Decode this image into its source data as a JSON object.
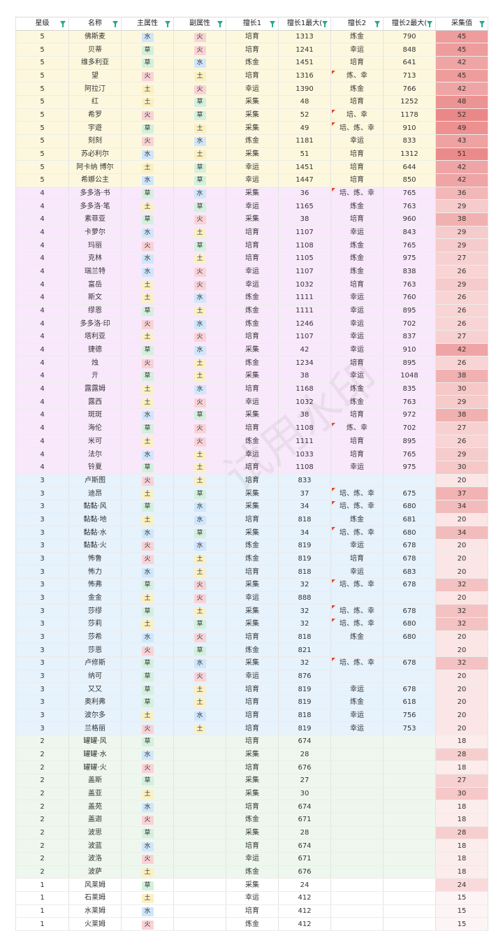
{
  "watermark": "试用水印",
  "headers": [
    "星级",
    "名称",
    "主属性",
    "副属性",
    "擅长1",
    "擅长1最大(",
    "擅长2",
    "擅长2最大(",
    "采集值"
  ],
  "colors": {
    "heat_base": "#e87a7a"
  },
  "rows": [
    [
      "5",
      "佛斯麦",
      "水",
      "火",
      "培育",
      "1313",
      "炼金",
      "790",
      "45"
    ],
    [
      "5",
      "贝蒂",
      "草",
      "火",
      "培育",
      "1241",
      "幸运",
      "848",
      "45"
    ],
    [
      "5",
      "维多利亚",
      "草",
      "水",
      "炼金",
      "1451",
      "培育",
      "641",
      "42"
    ],
    [
      "5",
      "望",
      "火",
      "土",
      "培育",
      "1316",
      "炼、幸",
      "713",
      "45"
    ],
    [
      "5",
      "阿拉汀",
      "土",
      "火",
      "幸运",
      "1390",
      "炼金",
      "766",
      "42"
    ],
    [
      "5",
      "红",
      "土",
      "草",
      "采集",
      "48",
      "培育",
      "1252",
      "48"
    ],
    [
      "5",
      "希罗",
      "火",
      "草",
      "采集",
      "52",
      "培、幸",
      "1178",
      "52"
    ],
    [
      "5",
      "宇遊",
      "草",
      "土",
      "采集",
      "49",
      "培、炼、幸",
      "910",
      "49"
    ],
    [
      "5",
      "刻刻",
      "火",
      "水",
      "炼金",
      "1181",
      "幸运",
      "833",
      "43"
    ],
    [
      "5",
      "苏必利尔",
      "水",
      "土",
      "采集",
      "51",
      "培育",
      "1312",
      "51"
    ],
    [
      "5",
      "阿卡纳 博尔",
      "土",
      "草",
      "幸运",
      "1451",
      "培育",
      "644",
      "42"
    ],
    [
      "5",
      "希娜公主",
      "水",
      "草",
      "幸运",
      "1447",
      "培育",
      "850",
      "42"
    ],
    [
      "4",
      "多多洛·书",
      "草",
      "水",
      "采集",
      "36",
      "培、炼、幸",
      "765",
      "36"
    ],
    [
      "4",
      "多多洛·笔",
      "土",
      "草",
      "幸运",
      "1165",
      "炼金",
      "763",
      "29"
    ],
    [
      "4",
      "素菲亚",
      "草",
      "火",
      "采集",
      "38",
      "培育",
      "960",
      "38"
    ],
    [
      "4",
      "卡萝尔",
      "水",
      "土",
      "培育",
      "1107",
      "幸运",
      "843",
      "29"
    ],
    [
      "4",
      "玛丽",
      "火",
      "草",
      "培育",
      "1108",
      "炼金",
      "765",
      "29"
    ],
    [
      "4",
      "克林",
      "水",
      "土",
      "培育",
      "1105",
      "炼金",
      "975",
      "27"
    ],
    [
      "4",
      "瑞兰特",
      "水",
      "火",
      "幸运",
      "1107",
      "炼金",
      "838",
      "26"
    ],
    [
      "4",
      "富岳",
      "土",
      "火",
      "幸运",
      "1032",
      "培育",
      "763",
      "29"
    ],
    [
      "4",
      "斯文",
      "土",
      "水",
      "炼金",
      "1111",
      "幸运",
      "760",
      "26"
    ],
    [
      "4",
      "缪恩",
      "草",
      "土",
      "炼金",
      "1111",
      "幸运",
      "895",
      "26"
    ],
    [
      "4",
      "多多洛·印",
      "火",
      "水",
      "炼金",
      "1246",
      "幸运",
      "702",
      "26"
    ],
    [
      "4",
      "塔利亚",
      "土",
      "火",
      "培育",
      "1107",
      "幸运",
      "837",
      "27"
    ],
    [
      "4",
      "捷德",
      "草",
      "水",
      "采集",
      "42",
      "幸运",
      "910",
      "42"
    ],
    [
      "4",
      "烛",
      "火",
      "土",
      "炼金",
      "1234",
      "培育",
      "895",
      "26"
    ],
    [
      "4",
      "亓",
      "草",
      "土",
      "采集",
      "38",
      "幸运",
      "1048",
      "38"
    ],
    [
      "4",
      "露露姆",
      "土",
      "水",
      "培育",
      "1168",
      "炼金",
      "835",
      "30"
    ],
    [
      "4",
      "露西",
      "土",
      "火",
      "幸运",
      "1032",
      "炼金",
      "763",
      "29"
    ],
    [
      "4",
      "斑斑",
      "水",
      "草",
      "采集",
      "38",
      "培育",
      "972",
      "38"
    ],
    [
      "4",
      "海伦",
      "草",
      "火",
      "培育",
      "1108",
      "炼、幸",
      "702",
      "27"
    ],
    [
      "4",
      "米可",
      "土",
      "火",
      "炼金",
      "1111",
      "培育",
      "895",
      "26"
    ],
    [
      "4",
      "法尔",
      "水",
      "土",
      "幸运",
      "1033",
      "培育",
      "765",
      "29"
    ],
    [
      "4",
      "铃夏",
      "草",
      "土",
      "培育",
      "1108",
      "幸运",
      "975",
      "30"
    ],
    [
      "3",
      "卢斯图",
      "火",
      "土",
      "培育",
      "833",
      "",
      "",
      "20"
    ],
    [
      "3",
      "迪昂",
      "土",
      "草",
      "采集",
      "37",
      "培、炼、幸",
      "675",
      "37"
    ],
    [
      "3",
      "黏黏·风",
      "草",
      "水",
      "采集",
      "34",
      "培、炼、幸",
      "680",
      "34"
    ],
    [
      "3",
      "黏黏·地",
      "土",
      "水",
      "培育",
      "818",
      "炼金",
      "681",
      "20"
    ],
    [
      "3",
      "黏黏·水",
      "水",
      "草",
      "采集",
      "34",
      "培、炼、幸",
      "680",
      "34"
    ],
    [
      "3",
      "黏黏·火",
      "火",
      "水",
      "炼金",
      "819",
      "幸运",
      "678",
      "20"
    ],
    [
      "3",
      "怖鲁",
      "火",
      "土",
      "炼金",
      "819",
      "培育",
      "678",
      "20"
    ],
    [
      "3",
      "怖力",
      "水",
      "土",
      "培育",
      "818",
      "幸运",
      "683",
      "20"
    ],
    [
      "3",
      "怖弗",
      "草",
      "火",
      "采集",
      "32",
      "培、炼、幸",
      "678",
      "32"
    ],
    [
      "3",
      "金金",
      "土",
      "火",
      "幸运",
      "888",
      "",
      "",
      "20"
    ],
    [
      "3",
      "莎缪",
      "草",
      "土",
      "采集",
      "32",
      "培、炼、幸",
      "678",
      "32"
    ],
    [
      "3",
      "莎莉",
      "土",
      "草",
      "采集",
      "32",
      "培、炼、幸",
      "680",
      "32"
    ],
    [
      "3",
      "莎希",
      "水",
      "火",
      "培育",
      "818",
      "炼金",
      "680",
      "20"
    ],
    [
      "3",
      "莎恩",
      "火",
      "草",
      "炼金",
      "821",
      "",
      "",
      "20"
    ],
    [
      "3",
      "卢修斯",
      "草",
      "水",
      "采集",
      "32",
      "培、炼、幸",
      "678",
      "32"
    ],
    [
      "3",
      "纳可",
      "草",
      "火",
      "幸运",
      "876",
      "",
      "",
      "20"
    ],
    [
      "3",
      "又又",
      "草",
      "土",
      "培育",
      "819",
      "幸运",
      "678",
      "20"
    ],
    [
      "3",
      "奥利弗",
      "草",
      "土",
      "培育",
      "819",
      "炼金",
      "618",
      "20"
    ],
    [
      "3",
      "波尔多",
      "土",
      "水",
      "培育",
      "818",
      "幸运",
      "756",
      "20"
    ],
    [
      "3",
      "兰格丽",
      "火",
      "土",
      "培育",
      "819",
      "幸运",
      "753",
      "20"
    ],
    [
      "2",
      "罐罐·风",
      "草",
      "",
      "培育",
      "674",
      "",
      "",
      "18"
    ],
    [
      "2",
      "罐罐·水",
      "水",
      "",
      "采集",
      "28",
      "",
      "",
      "28"
    ],
    [
      "2",
      "罐罐·火",
      "火",
      "",
      "培育",
      "676",
      "",
      "",
      "18"
    ],
    [
      "2",
      "盖斯",
      "草",
      "",
      "采集",
      "27",
      "",
      "",
      "27"
    ],
    [
      "2",
      "盖亚",
      "土",
      "",
      "采集",
      "30",
      "",
      "",
      "30"
    ],
    [
      "2",
      "盖苑",
      "水",
      "",
      "培育",
      "674",
      "",
      "",
      "18"
    ],
    [
      "2",
      "盖迦",
      "火",
      "",
      "炼金",
      "671",
      "",
      "",
      "18"
    ],
    [
      "2",
      "波思",
      "草",
      "",
      "采集",
      "28",
      "",
      "",
      "28"
    ],
    [
      "2",
      "波蓝",
      "水",
      "",
      "培育",
      "674",
      "",
      "",
      "18"
    ],
    [
      "2",
      "波洛",
      "火",
      "",
      "幸运",
      "671",
      "",
      "",
      "18"
    ],
    [
      "2",
      "波萨",
      "土",
      "",
      "炼金",
      "676",
      "",
      "",
      "18"
    ],
    [
      "1",
      "风莱姆",
      "草",
      "",
      "采集",
      "24",
      "",
      "",
      "24"
    ],
    [
      "1",
      "石莱姆",
      "土",
      "",
      "幸运",
      "412",
      "",
      "",
      "15"
    ],
    [
      "1",
      "水莱姆",
      "水",
      "",
      "培育",
      "412",
      "",
      "",
      "15"
    ],
    [
      "1",
      "火莱姆",
      "火",
      "",
      "炼金",
      "412",
      "",
      "",
      "15"
    ]
  ]
}
